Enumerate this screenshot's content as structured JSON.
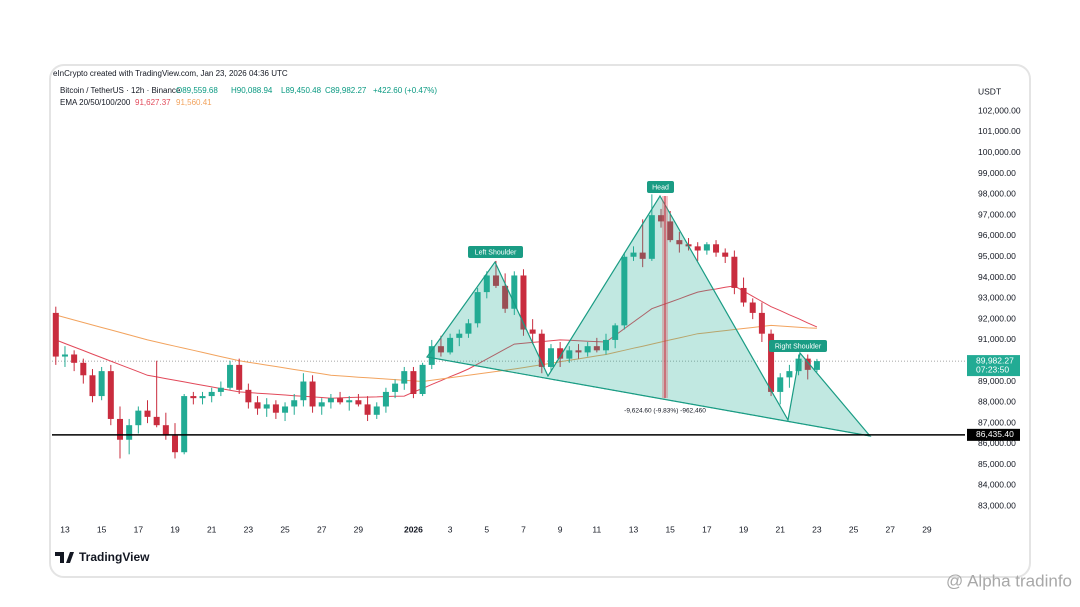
{
  "chart_data": {
    "type": "candlestick",
    "title": "eInCrypto created with TradingView.com, Jan 23, 2026 04:36 UTC",
    "legend": {
      "symbol": "Bitcoin / TetherUS · 12h · Binance",
      "open": "O89,559.68",
      "high": "H90,088.94",
      "low": "L89,450.48",
      "close": "C89,982.27",
      "change": "+422.60 (+0.47%)"
    },
    "ema_legend": {
      "name": "EMA 20/50/100/200",
      "first": "91,627.37",
      "second": "91,560.41"
    },
    "y_unit": "USDT",
    "brand": "TradingView",
    "watermark": "@ Alpha tradinfo",
    "annotations": {
      "left_shoulder": "Left Shoulder",
      "head": "Head",
      "right_shoulder": "Right Shoulder",
      "measure": "-9,624.60 (-9.83%) -962,460"
    },
    "categories": [
      null,
      "13",
      null,
      null,
      null,
      "15",
      null,
      null,
      null,
      "17",
      null,
      null,
      null,
      "19",
      null,
      null,
      null,
      "21",
      null,
      null,
      null,
      "23",
      null,
      null,
      null,
      "25",
      null,
      null,
      null,
      "27",
      null,
      null,
      null,
      "29",
      null,
      null,
      null,
      null,
      null,
      "2026",
      null,
      null,
      null,
      "3",
      null,
      null,
      null,
      "5",
      null,
      null,
      null,
      "7",
      null,
      null,
      null,
      "9",
      null,
      null,
      null,
      "11",
      null,
      null,
      null,
      "13",
      null,
      null,
      null,
      "15",
      null,
      null,
      null,
      "17",
      null,
      null,
      null,
      "19",
      null,
      null,
      null,
      "21",
      null,
      null,
      null,
      "23",
      null,
      null,
      null,
      "25",
      null,
      null,
      null,
      "27",
      null,
      null,
      null,
      "29"
    ],
    "series": [
      {
        "name": "Bitcoin / TetherUS",
        "up_color": "#22ab94",
        "down_color": "#c92c3e",
        "open": [
          92300,
          90200,
          90300,
          89900,
          89300,
          88300,
          89500,
          87200,
          86200,
          86900,
          87600,
          87300,
          86900,
          86400,
          85600,
          88300,
          88200,
          88300,
          88500,
          88700,
          89800,
          88600,
          88000,
          87700,
          87900,
          87500,
          87800,
          88100,
          89000,
          87800,
          88000,
          88200,
          88000,
          88100,
          87900,
          87400,
          87800,
          88500,
          88900,
          89500,
          88400,
          89800,
          90700,
          90400,
          91100,
          91300,
          91800,
          93300,
          94100,
          93600,
          92500,
          94100,
          91500,
          91300,
          89700,
          90600,
          90100,
          90500,
          90400,
          90700,
          90500,
          91000,
          91700,
          95000,
          95200,
          94900,
          97000,
          96700,
          95800,
          95600,
          95500,
          95300,
          95600,
          95200,
          95000,
          93500,
          92800,
          92300,
          91300,
          88500,
          89200,
          89500,
          90100,
          89559.68,
          null,
          null,
          null,
          null,
          null,
          null,
          null,
          null,
          null,
          null,
          null,
          null
        ],
        "high": [
          92600,
          90700,
          90500,
          90100,
          89600,
          89700,
          89800,
          87800,
          87200,
          87800,
          88100,
          90000,
          87500,
          87000,
          88400,
          88500,
          88500,
          88700,
          89000,
          90000,
          90100,
          88900,
          88300,
          88200,
          88100,
          88000,
          88400,
          89400,
          89300,
          88200,
          88400,
          88500,
          88300,
          88400,
          88300,
          88000,
          88700,
          89100,
          89700,
          89700,
          89900,
          91000,
          91200,
          91300,
          91500,
          92000,
          93500,
          94300,
          94800,
          94200,
          94300,
          94400,
          92000,
          91500,
          90800,
          90900,
          90700,
          90800,
          90900,
          91100,
          91300,
          91800,
          95200,
          95500,
          96800,
          98000,
          97300,
          97200,
          96200,
          95900,
          95700,
          95700,
          95800,
          95400,
          95300,
          94000,
          93000,
          92800,
          91500,
          89400,
          89800,
          90300,
          90300,
          90088.94,
          null,
          null,
          null,
          null,
          null,
          null,
          null,
          null,
          null,
          null,
          null,
          null
        ],
        "low": [
          89800,
          89700,
          89500,
          88900,
          88000,
          88100,
          86900,
          85300,
          85500,
          86500,
          87000,
          86800,
          86200,
          85300,
          85500,
          87900,
          87900,
          88000,
          88300,
          88600,
          88400,
          87700,
          87400,
          87300,
          87200,
          87100,
          87400,
          87800,
          87500,
          87400,
          87700,
          87900,
          87600,
          87800,
          87100,
          87200,
          87500,
          88200,
          88600,
          88200,
          88300,
          89600,
          90200,
          90300,
          90700,
          91100,
          91600,
          93000,
          93500,
          92300,
          92200,
          91200,
          90800,
          89400,
          89500,
          89700,
          89900,
          90100,
          90200,
          90400,
          90300,
          90600,
          91500,
          94800,
          94500,
          94800,
          96400,
          95700,
          95200,
          95300,
          94800,
          95100,
          95000,
          94700,
          93200,
          92600,
          92000,
          90900,
          88300,
          87900,
          88700,
          89300,
          89100,
          89450.48,
          null,
          null,
          null,
          null,
          null,
          null,
          null,
          null,
          null,
          null,
          null,
          null
        ],
        "close": [
          90200,
          90300,
          89900,
          89300,
          88300,
          89500,
          87200,
          86200,
          86900,
          87600,
          87300,
          86900,
          86400,
          85600,
          88300,
          88200,
          88300,
          88500,
          88700,
          89800,
          88600,
          88000,
          87700,
          87900,
          87500,
          87800,
          88100,
          89000,
          87800,
          88000,
          88200,
          88000,
          88100,
          87900,
          87400,
          87800,
          88500,
          88900,
          89500,
          88400,
          89800,
          90700,
          90400,
          91100,
          91300,
          91800,
          93300,
          94100,
          93600,
          92500,
          94100,
          91500,
          91300,
          89700,
          90600,
          90100,
          90500,
          90400,
          90700,
          90500,
          91000,
          91700,
          95000,
          95200,
          94900,
          97000,
          96700,
          95800,
          95600,
          95500,
          95300,
          95600,
          95200,
          95000,
          93500,
          92800,
          92300,
          91300,
          88500,
          89200,
          89500,
          90100,
          89560,
          89982.27,
          null,
          null,
          null,
          null,
          null,
          null,
          null,
          null,
          null,
          null,
          null,
          null
        ]
      }
    ],
    "overlays": [
      {
        "name": "EMA 20",
        "color": "#e2495a",
        "values": [
          91000,
          90830,
          90660,
          90490,
          90320,
          90150,
          89980,
          89810,
          89640,
          89470,
          89300,
          89220,
          89140,
          89060,
          88980,
          88900,
          88820,
          88740,
          88660,
          88580,
          88500,
          88470,
          88440,
          88410,
          88380,
          88350,
          88320,
          88290,
          88260,
          88230,
          88200,
          88210,
          88230,
          88240,
          88250,
          88260,
          88280,
          88290,
          88300,
          88490,
          88670,
          88860,
          89040,
          89230,
          89410,
          89600,
          89840,
          90080,
          90320,
          90560,
          90800,
          90840,
          90880,
          90920,
          90960,
          91000,
          90980,
          90960,
          90940,
          90920,
          90900,
          91220,
          91540,
          91860,
          92180,
          92500,
          92660,
          92820,
          92980,
          93140,
          93300,
          93380,
          93450,
          93530,
          93600,
          93350,
          93100,
          92850,
          92600,
          92410,
          92210,
          92020,
          91820,
          91627.37,
          null,
          null,
          null,
          null,
          null,
          null,
          null,
          null,
          null,
          null,
          null,
          null
        ]
      },
      {
        "name": "EMA 50",
        "color": "#f2a35e",
        "values": [
          92200,
          92080,
          91960,
          91840,
          91720,
          91600,
          91480,
          91360,
          91240,
          91120,
          91000,
          90900,
          90800,
          90700,
          90600,
          90500,
          90400,
          90300,
          90200,
          90100,
          90000,
          89930,
          89860,
          89790,
          89720,
          89650,
          89580,
          89510,
          89440,
          89370,
          89300,
          89270,
          89240,
          89210,
          89180,
          89150,
          89120,
          89090,
          89060,
          89030,
          89000,
          89060,
          89120,
          89180,
          89240,
          89300,
          89360,
          89420,
          89480,
          89540,
          89600,
          89670,
          89740,
          89810,
          89880,
          89950,
          90020,
          90090,
          90160,
          90230,
          90300,
          90400,
          90500,
          90600,
          90700,
          90800,
          90900,
          91000,
          91100,
          91200,
          91300,
          91350,
          91400,
          91450,
          91500,
          91550,
          91600,
          91650,
          91700,
          91670,
          91640,
          91610,
          91580,
          91560.41,
          null,
          null,
          null,
          null,
          null,
          null,
          null,
          null,
          null,
          null,
          null,
          null
        ]
      }
    ],
    "last_price": {
      "value": 89982.27,
      "label": "89,982.27",
      "countdown": "07:23:50",
      "color": "#22ab94"
    },
    "support": {
      "value": 86435.4,
      "label": "86,435.40",
      "color": "#000000"
    },
    "ylim": [
      82100,
      103500
    ],
    "yticks": [
      {
        "value": 83000,
        "label": "83,000.00"
      },
      {
        "value": 84000,
        "label": "84,000.00"
      },
      {
        "value": 85000,
        "label": "85,000.00"
      },
      {
        "value": 86000,
        "label": "86,000.00"
      },
      {
        "value": 87000,
        "label": "87,000.00"
      },
      {
        "value": 88000,
        "label": "88,000.00"
      },
      {
        "value": 89000,
        "label": "89,000.00"
      },
      {
        "value": 90000,
        "label": "90,000.00"
      },
      {
        "value": 91000,
        "label": "91,000.00"
      },
      {
        "value": 92000,
        "label": "92,000.00"
      },
      {
        "value": 93000,
        "label": "93,000.00"
      },
      {
        "value": 94000,
        "label": "94,000.00"
      },
      {
        "value": 95000,
        "label": "95,000.00"
      },
      {
        "value": 96000,
        "label": "96,000.00"
      },
      {
        "value": 97000,
        "label": "97,000.00"
      },
      {
        "value": 98000,
        "label": "98,000.00"
      },
      {
        "value": 99000,
        "label": "99,000.00"
      },
      {
        "value": 100000,
        "label": "100,000.00"
      },
      {
        "value": 101000,
        "label": "101,000.00"
      },
      {
        "value": 102000,
        "label": "102,000.00"
      }
    ],
    "grid": false
  }
}
